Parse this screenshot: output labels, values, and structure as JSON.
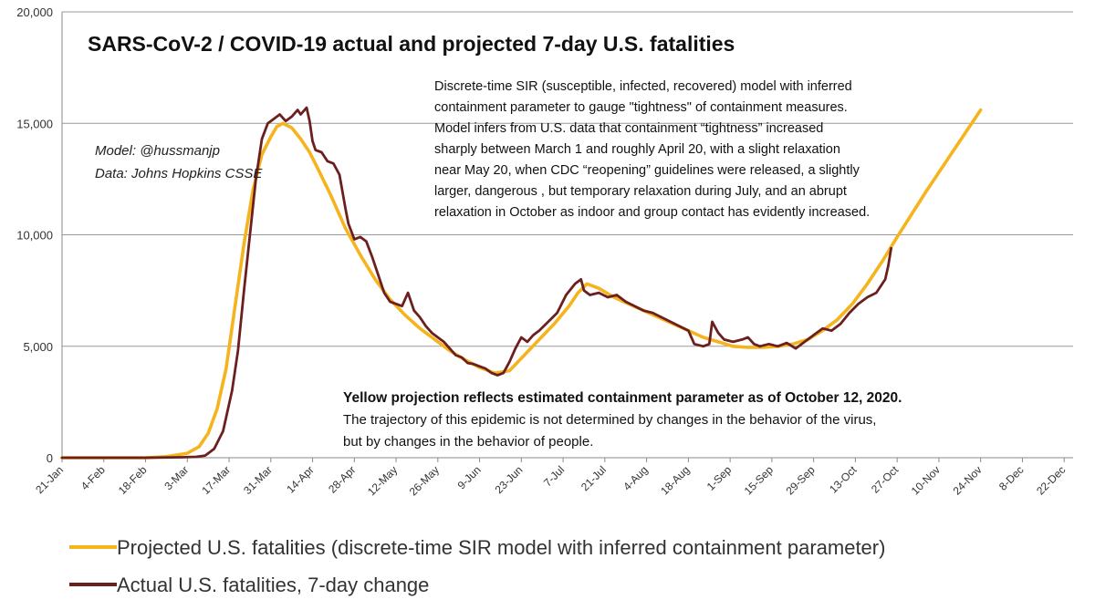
{
  "chart_data": {
    "type": "line",
    "title": "SARS-CoV-2  / COVID-19 actual and projected 7-day U.S. fatalities",
    "xlabel": "",
    "ylabel": "",
    "ylim": [
      0,
      20000
    ],
    "yticks": [
      "0",
      "5,000",
      "10,000",
      "15,000",
      "20,000"
    ],
    "xticks": [
      "21-Jan",
      "4-Feb",
      "18-Feb",
      "3-Mar",
      "17-Mar",
      "31-Mar",
      "14-Apr",
      "28-Apr",
      "12-May",
      "26-May",
      "9-Jun",
      "23-Jun",
      "7-Jul",
      "21-Jul",
      "4-Aug",
      "18-Aug",
      "1-Sep",
      "15-Sep",
      "29-Sep",
      "13-Oct",
      "27-Oct",
      "10-Nov",
      "24-Nov",
      "8-Dec",
      "22-Dec"
    ],
    "grid": "horizontal",
    "legend_position": "bottom",
    "series": [
      {
        "name": "Projected U.S. fatalities (discrete-time SIR model with inferred containment parameter)",
        "color": "#F5B41E",
        "points": [
          [
            0,
            0
          ],
          [
            28,
            0
          ],
          [
            35,
            50
          ],
          [
            42,
            200
          ],
          [
            46,
            500
          ],
          [
            49,
            1100
          ],
          [
            52,
            2200
          ],
          [
            55,
            4000
          ],
          [
            58,
            6800
          ],
          [
            61,
            9600
          ],
          [
            64,
            12000
          ],
          [
            67,
            13600
          ],
          [
            70,
            14400
          ],
          [
            72,
            14850
          ],
          [
            74,
            15000
          ],
          [
            77,
            14800
          ],
          [
            80,
            14300
          ],
          [
            83,
            13700
          ],
          [
            86,
            12900
          ],
          [
            90,
            11800
          ],
          [
            95,
            10300
          ],
          [
            100,
            9100
          ],
          [
            105,
            8000
          ],
          [
            110,
            7100
          ],
          [
            115,
            6400
          ],
          [
            120,
            5800
          ],
          [
            125,
            5300
          ],
          [
            130,
            4800
          ],
          [
            135,
            4400
          ],
          [
            140,
            4050
          ],
          [
            145,
            3800
          ],
          [
            150,
            3900
          ],
          [
            155,
            4600
          ],
          [
            160,
            5300
          ],
          [
            165,
            6000
          ],
          [
            170,
            6800
          ],
          [
            173,
            7400
          ],
          [
            176,
            7800
          ],
          [
            180,
            7600
          ],
          [
            185,
            7200
          ],
          [
            190,
            6900
          ],
          [
            195,
            6600
          ],
          [
            200,
            6300
          ],
          [
            205,
            6000
          ],
          [
            210,
            5700
          ],
          [
            215,
            5400
          ],
          [
            220,
            5200
          ],
          [
            225,
            5000
          ],
          [
            230,
            4950
          ],
          [
            235,
            4950
          ],
          [
            240,
            5000
          ],
          [
            245,
            5100
          ],
          [
            250,
            5300
          ],
          [
            255,
            5700
          ],
          [
            260,
            6200
          ],
          [
            265,
            6900
          ],
          [
            270,
            7800
          ],
          [
            275,
            8800
          ],
          [
            280,
            9900
          ],
          [
            290,
            12000
          ],
          [
            300,
            14000
          ],
          [
            308,
            15600
          ]
        ]
      },
      {
        "name": "Actual U.S. fatalities, 7-day change",
        "color": "#6B1F1F",
        "points": [
          [
            0,
            0
          ],
          [
            28,
            0
          ],
          [
            40,
            20
          ],
          [
            45,
            40
          ],
          [
            48,
            100
          ],
          [
            51,
            400
          ],
          [
            54,
            1200
          ],
          [
            57,
            3000
          ],
          [
            59,
            4800
          ],
          [
            61,
            7500
          ],
          [
            63,
            10000
          ],
          [
            65,
            12500
          ],
          [
            67,
            14300
          ],
          [
            69,
            15000
          ],
          [
            71,
            15200
          ],
          [
            73,
            15400
          ],
          [
            75,
            15100
          ],
          [
            77,
            15300
          ],
          [
            79,
            15600
          ],
          [
            80,
            15400
          ],
          [
            82,
            15700
          ],
          [
            83,
            15100
          ],
          [
            84,
            14200
          ],
          [
            85,
            13800
          ],
          [
            87,
            13700
          ],
          [
            89,
            13300
          ],
          [
            91,
            13200
          ],
          [
            93,
            12700
          ],
          [
            95,
            11200
          ],
          [
            96,
            10500
          ],
          [
            98,
            9800
          ],
          [
            100,
            9900
          ],
          [
            102,
            9700
          ],
          [
            104,
            9000
          ],
          [
            106,
            8200
          ],
          [
            108,
            7400
          ],
          [
            110,
            7000
          ],
          [
            112,
            6900
          ],
          [
            114,
            6800
          ],
          [
            116,
            7400
          ],
          [
            118,
            6600
          ],
          [
            120,
            6300
          ],
          [
            122,
            5900
          ],
          [
            124,
            5600
          ],
          [
            126,
            5400
          ],
          [
            128,
            5200
          ],
          [
            130,
            4900
          ],
          [
            132,
            4600
          ],
          [
            134,
            4500
          ],
          [
            136,
            4250
          ],
          [
            138,
            4200
          ],
          [
            140,
            4100
          ],
          [
            142,
            4000
          ],
          [
            144,
            3800
          ],
          [
            146,
            3700
          ],
          [
            148,
            3800
          ],
          [
            150,
            4300
          ],
          [
            152,
            4900
          ],
          [
            154,
            5400
          ],
          [
            156,
            5200
          ],
          [
            158,
            5500
          ],
          [
            160,
            5700
          ],
          [
            163,
            6100
          ],
          [
            166,
            6500
          ],
          [
            169,
            7300
          ],
          [
            172,
            7800
          ],
          [
            174,
            8000
          ],
          [
            175,
            7500
          ],
          [
            177,
            7300
          ],
          [
            180,
            7400
          ],
          [
            183,
            7200
          ],
          [
            186,
            7300
          ],
          [
            189,
            7000
          ],
          [
            192,
            6800
          ],
          [
            195,
            6600
          ],
          [
            198,
            6500
          ],
          [
            201,
            6300
          ],
          [
            204,
            6100
          ],
          [
            207,
            5900
          ],
          [
            210,
            5700
          ],
          [
            212,
            5100
          ],
          [
            215,
            5000
          ],
          [
            217,
            5100
          ],
          [
            218,
            6100
          ],
          [
            220,
            5600
          ],
          [
            222,
            5300
          ],
          [
            225,
            5200
          ],
          [
            228,
            5300
          ],
          [
            230,
            5400
          ],
          [
            232,
            5100
          ],
          [
            234,
            5000
          ],
          [
            237,
            5100
          ],
          [
            240,
            5000
          ],
          [
            243,
            5150
          ],
          [
            246,
            4900
          ],
          [
            249,
            5200
          ],
          [
            252,
            5500
          ],
          [
            255,
            5800
          ],
          [
            258,
            5700
          ],
          [
            261,
            6000
          ],
          [
            264,
            6500
          ],
          [
            267,
            6900
          ],
          [
            270,
            7200
          ],
          [
            273,
            7400
          ],
          [
            276,
            8000
          ],
          [
            277,
            8600
          ],
          [
            278,
            9400
          ]
        ]
      }
    ]
  },
  "annotations": {
    "credit_lines": [
      "Model: @hussmanjp",
      "Data: Johns Hopkins CSSE"
    ],
    "note_lines": [
      "Discrete-time SIR (susceptible, infected, recovered) model with inferred",
      "containment parameter to gauge \"tightness\" of containment measures.",
      "Model infers from U.S. data that containment  “tightness” increased",
      "sharply between March 1 and roughly April 20, with a slight relaxation",
      "near May 20, when CDC “reopening” guidelines were released, a slightly",
      "larger, dangerous , but temporary relaxation during July, and an abrupt",
      "relaxation in October as indoor and group contact has evidently increased."
    ],
    "bold_note": "Yellow  projection reflects estimated containment parameter as of October 12, 2020.",
    "plain_note_lines": [
      "The trajectory of this epidemic is not determined by changes in the behavior of the virus,",
      "but by changes in the behavior of people."
    ]
  }
}
